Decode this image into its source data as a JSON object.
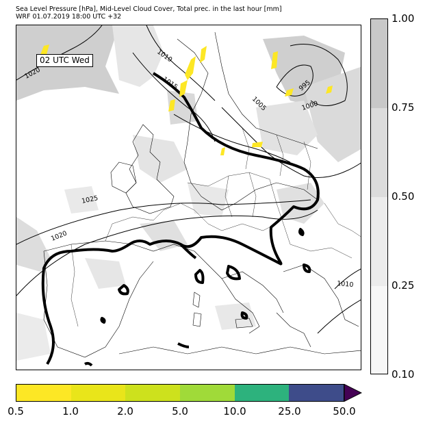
{
  "header": {
    "title_line1": "Sea Level Pressure [hPa], Mid-Level Cloud Cover, Total prec. in the last hour [mm]",
    "title_line2": "WRF 01.07.2019 18:00 UTC +32"
  },
  "map": {
    "valid_label": "02 UTC Wed",
    "isobar_labels": [
      "1020",
      "1010",
      "1015",
      "1005",
      "995",
      "1000",
      "1025",
      "1020",
      "1010"
    ]
  },
  "cloud_colorbar": {
    "labels": [
      "1.00",
      "0.75",
      "0.50",
      "0.25",
      "0.10"
    ],
    "colors": [
      "#c8c8c8",
      "#dcdcdc",
      "#ececec",
      "#f7f7f7"
    ]
  },
  "precip_colorbar": {
    "labels": [
      "0.5",
      "1.0",
      "2.0",
      "5.0",
      "10.0",
      "25.0",
      "50.0"
    ],
    "colors": [
      "#fde725",
      "#e9e51a",
      "#cde11d",
      "#a0da39",
      "#2db27d",
      "#3e4c8a",
      "#440154"
    ]
  }
}
